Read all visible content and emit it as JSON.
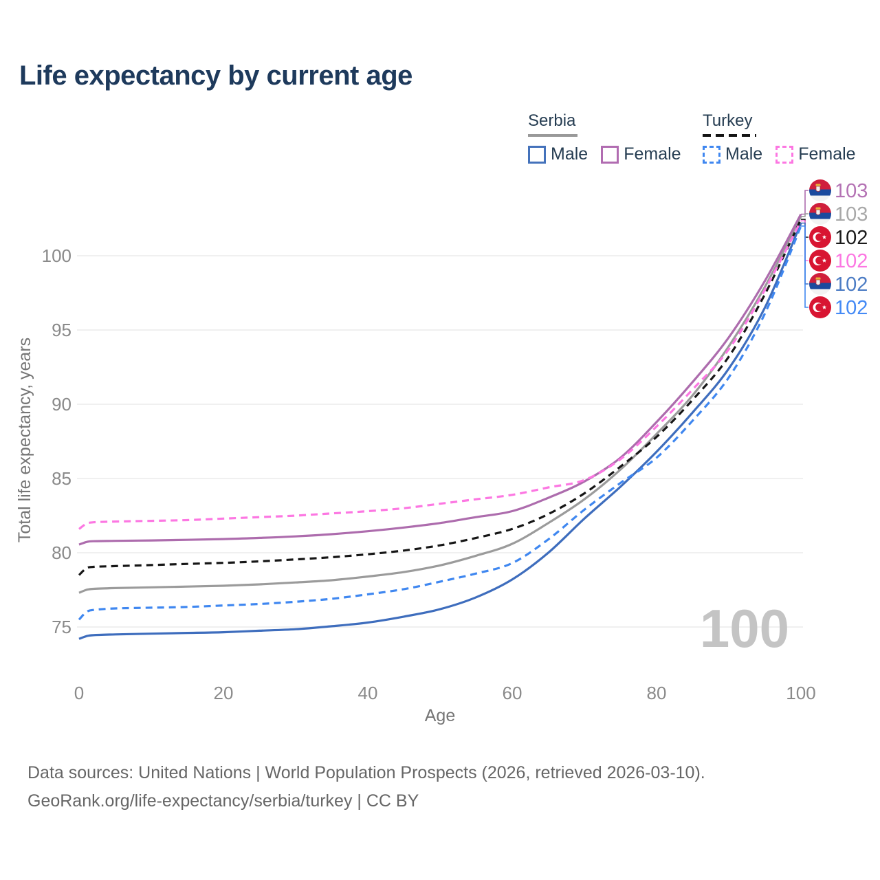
{
  "title": "Life expectancy by current age",
  "watermark_age": "100",
  "legend": {
    "groups": [
      {
        "country": "Serbia",
        "line_style": "solid",
        "line_color": "#999999",
        "items": [
          {
            "label": "Male",
            "color": "#4472bb",
            "dashed": false
          },
          {
            "label": "Female",
            "color": "#b16cb1",
            "dashed": false
          }
        ]
      },
      {
        "country": "Turkey",
        "line_style": "dashed",
        "line_color": "#141414",
        "items": [
          {
            "label": "Male",
            "color": "#3f87f0",
            "dashed": true
          },
          {
            "label": "Female",
            "color": "#fc77e2",
            "dashed": true
          }
        ]
      }
    ]
  },
  "chart_data": {
    "type": "line",
    "title": "Life expectancy by current age",
    "xlabel": "Age",
    "ylabel": "Total life expectancy, years",
    "xlim": [
      0,
      100
    ],
    "ylim": [
      73.5,
      103.5
    ],
    "x_ticks": [
      0,
      20,
      40,
      60,
      80,
      100
    ],
    "y_ticks": [
      75,
      80,
      85,
      90,
      95,
      100
    ],
    "grid": "horizontal-only",
    "legend_position": "top-right",
    "x": [
      0,
      1,
      2,
      5,
      10,
      15,
      20,
      25,
      30,
      35,
      40,
      45,
      50,
      55,
      60,
      65,
      70,
      75,
      80,
      85,
      90,
      95,
      100
    ],
    "series": [
      {
        "key": "sa",
        "name": "Serbia (both sexes)",
        "country": "Serbia",
        "sex": "all",
        "color": "#9b9b9b",
        "dashed": false,
        "values": [
          77.3,
          77.5,
          77.57,
          77.62,
          77.67,
          77.72,
          77.78,
          77.87,
          78.0,
          78.15,
          78.4,
          78.7,
          79.15,
          79.8,
          80.6,
          82.0,
          83.6,
          85.6,
          88.0,
          90.6,
          93.9,
          97.9,
          102.65
        ]
      },
      {
        "key": "sm",
        "name": "Serbia Male",
        "country": "Serbia",
        "sex": "male",
        "color": "#3e6dbd",
        "dashed": false,
        "values": [
          74.2,
          74.38,
          74.45,
          74.5,
          74.55,
          74.6,
          74.65,
          74.75,
          74.85,
          75.05,
          75.3,
          75.7,
          76.2,
          77.0,
          78.2,
          80.0,
          82.3,
          84.45,
          86.8,
          89.45,
          92.4,
          96.5,
          102.2
        ]
      },
      {
        "key": "sf",
        "name": "Serbia Female",
        "country": "Serbia",
        "sex": "female",
        "color": "#ad6cad",
        "dashed": false,
        "values": [
          80.55,
          80.72,
          80.78,
          80.8,
          80.83,
          80.87,
          80.92,
          81.0,
          81.1,
          81.25,
          81.45,
          81.7,
          82.0,
          82.4,
          82.8,
          83.7,
          84.8,
          86.4,
          88.8,
          91.5,
          94.5,
          98.3,
          102.8
        ]
      },
      {
        "key": "ta",
        "name": "Turkey (both sexes)",
        "country": "Turkey",
        "sex": "all",
        "color": "#161616",
        "dashed": true,
        "values": [
          78.5,
          78.95,
          79.05,
          79.1,
          79.17,
          79.25,
          79.32,
          79.42,
          79.55,
          79.7,
          79.9,
          80.15,
          80.5,
          81.0,
          81.6,
          82.6,
          84.0,
          85.8,
          87.8,
          90.3,
          93.2,
          97.4,
          102.45
        ]
      },
      {
        "key": "tm",
        "name": "Turkey Male",
        "country": "Turkey",
        "sex": "male",
        "color": "#3f87f0",
        "dashed": true,
        "values": [
          75.5,
          76.0,
          76.15,
          76.25,
          76.3,
          76.35,
          76.45,
          76.55,
          76.7,
          76.9,
          77.2,
          77.55,
          78.05,
          78.6,
          79.3,
          80.9,
          82.9,
          84.7,
          86.4,
          88.9,
          91.8,
          96.1,
          102.0
        ]
      },
      {
        "key": "tf",
        "name": "Turkey Female",
        "country": "Turkey",
        "sex": "female",
        "color": "#fc77e2",
        "dashed": true,
        "values": [
          81.6,
          81.95,
          82.05,
          82.1,
          82.15,
          82.2,
          82.3,
          82.4,
          82.5,
          82.65,
          82.8,
          83.0,
          83.3,
          83.6,
          83.9,
          84.4,
          84.9,
          86.3,
          88.5,
          91.0,
          93.7,
          97.7,
          102.35
        ]
      }
    ],
    "end_labels": [
      {
        "text": "103",
        "series": "sf",
        "flag": "serbia",
        "color": "#b472b4"
      },
      {
        "text": "103",
        "series": "sa",
        "flag": "serbia",
        "color": "#a8a8a8"
      },
      {
        "text": "102",
        "series": "ta",
        "flag": "turkey",
        "color": "#1a1a1a"
      },
      {
        "text": "102",
        "series": "tf",
        "flag": "turkey",
        "color": "#fc77e2"
      },
      {
        "text": "102",
        "series": "sm",
        "flag": "serbia",
        "color": "#4c7cc4"
      },
      {
        "text": "102",
        "series": "tm",
        "flag": "turkey",
        "color": "#448af5"
      }
    ],
    "flag_colors": {
      "serbia": {
        "red": "#d01f3c",
        "blue": "#1b4a9e",
        "white": "#f3f3f3",
        "crown": "#e8b43a"
      },
      "turkey": {
        "red": "#d81532",
        "white": "#ffffff"
      }
    }
  },
  "footer": {
    "line1": "Data sources: United Nations | World Population Prospects (2026, retrieved 2026-03-10).",
    "line2": "GeoRank.org/life-expectancy/serbia/turkey | CC BY"
  }
}
